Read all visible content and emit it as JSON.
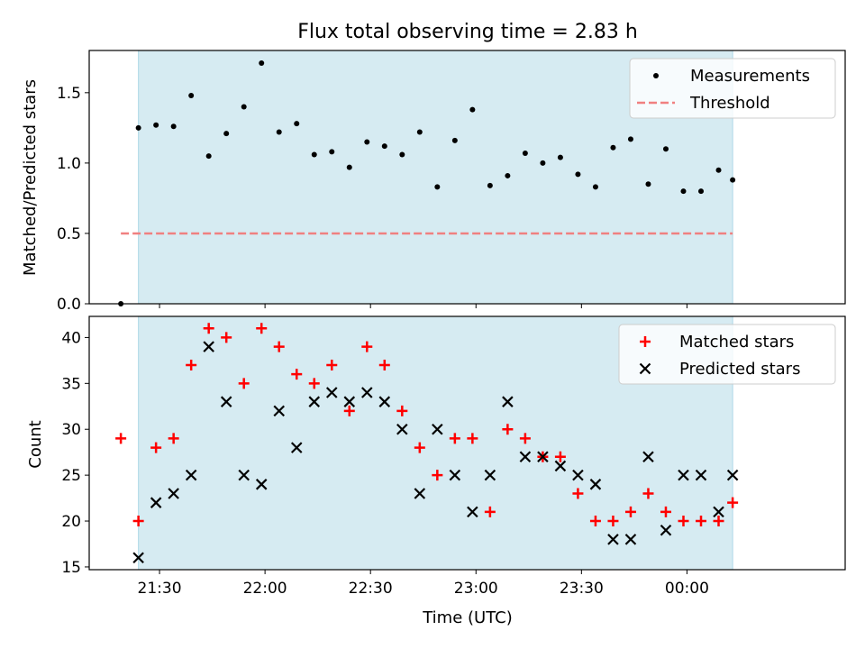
{
  "chart_data": [
    {
      "type": "scatter",
      "title": "Flux total observing time = 2.83 h",
      "xlabel": "",
      "ylabel": "Matched/Predicted stars",
      "xlim": [
        "21:10",
        "00:45"
      ],
      "ylim": [
        0,
        1.8
      ],
      "yticks": [
        "0.0",
        "0.5",
        "1.0",
        "1.5"
      ],
      "grid": false,
      "legend_position": "top-right",
      "shaded_span": [
        "21:24",
        "00:13"
      ],
      "shade_color": "#add8e6",
      "series": [
        {
          "name": "Measurements",
          "marker": "dot",
          "color": "#000000",
          "points": [
            [
              "21:19",
              0.0
            ],
            [
              "21:24",
              1.25
            ],
            [
              "21:34",
              1.26
            ],
            [
              "21:39",
              1.48
            ],
            [
              "21:44",
              1.05
            ],
            [
              "21:49",
              1.21
            ],
            [
              "21:54",
              1.4
            ],
            [
              "21:59",
              1.71
            ],
            [
              "22:04",
              1.22
            ],
            [
              "22:09",
              1.28
            ],
            [
              "22:14",
              1.06
            ],
            [
              "22:19",
              1.08
            ],
            [
              "22:24",
              0.97
            ],
            [
              "22:29",
              1.15
            ],
            [
              "22:34",
              1.12
            ],
            [
              "22:39",
              1.06
            ],
            [
              "22:44",
              1.22
            ],
            [
              "22:49",
              0.83
            ],
            [
              "22:54",
              1.16
            ],
            [
              "22:59",
              1.38
            ],
            [
              "23:04",
              0.84
            ],
            [
              "23:09",
              0.91
            ],
            [
              "23:14",
              1.07
            ],
            [
              "23:19",
              1.0
            ],
            [
              "23:24",
              1.04
            ],
            [
              "23:29",
              0.92
            ],
            [
              "23:34",
              0.83
            ],
            [
              "23:39",
              1.11
            ],
            [
              "23:44",
              1.17
            ],
            [
              "23:49",
              0.85
            ],
            [
              "23:54",
              1.1
            ],
            [
              "23:59",
              0.8
            ],
            [
              "00:04",
              0.8
            ],
            [
              "00:09",
              0.95
            ],
            [
              "00:13",
              0.88
            ],
            [
              "21:29",
              1.27
            ]
          ]
        },
        {
          "name": "Threshold",
          "marker": "dashed-line",
          "color": "#f08080",
          "points": [
            [
              "21:19",
              0.5
            ],
            [
              "00:13",
              0.5
            ]
          ]
        }
      ]
    },
    {
      "type": "scatter",
      "title": "",
      "xlabel": "Time (UTC)",
      "ylabel": "Count",
      "xlim": [
        "21:10",
        "00:45"
      ],
      "ylim": [
        14.7,
        42.3
      ],
      "xticks": [
        "21:30",
        "22:00",
        "22:30",
        "23:00",
        "23:30",
        "00:00"
      ],
      "yticks": [
        "15",
        "20",
        "25",
        "30",
        "35",
        "40"
      ],
      "grid": false,
      "legend_position": "top-right",
      "shaded_span": [
        "21:24",
        "00:13"
      ],
      "shade_color": "#add8e6",
      "series": [
        {
          "name": "Matched stars",
          "marker": "plus",
          "color": "#ff0000",
          "points": [
            [
              "21:19",
              29
            ],
            [
              "21:24",
              20
            ],
            [
              "21:29",
              28
            ],
            [
              "21:34",
              29
            ],
            [
              "21:39",
              37
            ],
            [
              "21:44",
              41
            ],
            [
              "21:49",
              40
            ],
            [
              "21:54",
              35
            ],
            [
              "21:59",
              41
            ],
            [
              "22:04",
              39
            ],
            [
              "22:09",
              36
            ],
            [
              "22:14",
              35
            ],
            [
              "22:19",
              37
            ],
            [
              "22:24",
              32
            ],
            [
              "22:29",
              39
            ],
            [
              "22:34",
              37
            ],
            [
              "22:39",
              32
            ],
            [
              "22:44",
              28
            ],
            [
              "22:49",
              25
            ],
            [
              "22:54",
              29
            ],
            [
              "22:59",
              29
            ],
            [
              "23:04",
              21
            ],
            [
              "23:09",
              30
            ],
            [
              "23:14",
              29
            ],
            [
              "23:19",
              27
            ],
            [
              "23:24",
              27
            ],
            [
              "23:29",
              23
            ],
            [
              "23:34",
              20
            ],
            [
              "23:39",
              20
            ],
            [
              "23:44",
              21
            ],
            [
              "23:49",
              23
            ],
            [
              "23:54",
              21
            ],
            [
              "23:59",
              20
            ],
            [
              "00:04",
              20
            ],
            [
              "00:09",
              20
            ],
            [
              "00:13",
              22
            ]
          ]
        },
        {
          "name": "Predicted stars",
          "marker": "x",
          "color": "#000000",
          "points": [
            [
              "21:24",
              16
            ],
            [
              "21:29",
              22
            ],
            [
              "21:34",
              23
            ],
            [
              "21:39",
              25
            ],
            [
              "21:44",
              39
            ],
            [
              "21:49",
              33
            ],
            [
              "21:54",
              25
            ],
            [
              "21:59",
              24
            ],
            [
              "22:04",
              32
            ],
            [
              "22:09",
              28
            ],
            [
              "22:14",
              33
            ],
            [
              "22:19",
              34
            ],
            [
              "22:24",
              33
            ],
            [
              "22:29",
              34
            ],
            [
              "22:34",
              33
            ],
            [
              "22:39",
              30
            ],
            [
              "22:44",
              23
            ],
            [
              "22:49",
              30
            ],
            [
              "22:54",
              25
            ],
            [
              "22:59",
              21
            ],
            [
              "23:04",
              25
            ],
            [
              "23:09",
              33
            ],
            [
              "23:14",
              27
            ],
            [
              "23:19",
              27
            ],
            [
              "23:24",
              26
            ],
            [
              "23:29",
              25
            ],
            [
              "23:34",
              24
            ],
            [
              "23:39",
              18
            ],
            [
              "23:44",
              18
            ],
            [
              "23:49",
              27
            ],
            [
              "23:54",
              19
            ],
            [
              "23:59",
              25
            ],
            [
              "00:04",
              25
            ],
            [
              "00:09",
              21
            ],
            [
              "00:13",
              25
            ]
          ]
        }
      ]
    }
  ]
}
